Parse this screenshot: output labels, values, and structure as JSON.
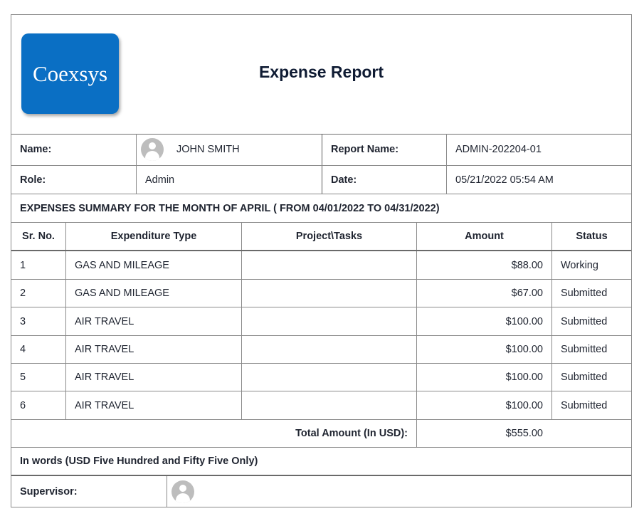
{
  "logo_text": "Coexsys",
  "title": "Expense Report",
  "info": {
    "name_label": "Name:",
    "name_value": "JOHN SMITH",
    "report_name_label": "Report Name:",
    "report_name_value": "ADMIN-202204-01",
    "role_label": "Role:",
    "role_value": "Admin",
    "date_label": "Date:",
    "date_value": "05/21/2022 05:54 AM"
  },
  "summary_heading": "EXPENSES SUMMARY FOR THE MONTH OF APRIL ( FROM 04/01/2022 TO 04/31/2022)",
  "table": {
    "headers": [
      "Sr. No.",
      "Expenditure Type",
      "Project\\Tasks",
      "Amount",
      "Status"
    ],
    "rows": [
      {
        "sr": "1",
        "type": "GAS AND MILEAGE",
        "project": "",
        "amount": "$88.00",
        "status": "Working"
      },
      {
        "sr": "2",
        "type": "GAS AND MILEAGE",
        "project": "",
        "amount": "$67.00",
        "status": "Submitted"
      },
      {
        "sr": "3",
        "type": "AIR TRAVEL",
        "project": "",
        "amount": "$100.00",
        "status": "Submitted"
      },
      {
        "sr": "4",
        "type": "AIR TRAVEL",
        "project": "",
        "amount": "$100.00",
        "status": "Submitted"
      },
      {
        "sr": "5",
        "type": "AIR TRAVEL",
        "project": "",
        "amount": "$100.00",
        "status": "Submitted"
      },
      {
        "sr": "6",
        "type": "AIR TRAVEL",
        "project": "",
        "amount": "$100.00",
        "status": "Submitted"
      }
    ]
  },
  "total_label": "Total Amount (In USD):",
  "total_value": "$555.00",
  "in_words": "In words (USD Five Hundred and Fifty Five Only)",
  "supervisor_label": "Supervisor:",
  "icons": {
    "avatar": "user-avatar-icon"
  }
}
